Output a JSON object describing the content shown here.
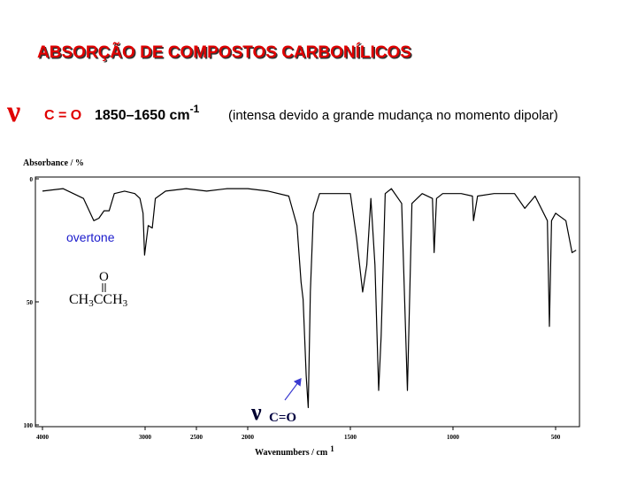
{
  "header": {
    "title": "ABSORÇÃO DE COMPOSTOS CARBONÍLICOS",
    "symbol": "ν",
    "group": "C = O",
    "range": "1850–1650 cm",
    "range_sup": "-1",
    "note": "(intensa devido a grande mudança no momento dipolar)"
  },
  "chart_data": {
    "type": "line",
    "ylabel": "Absorbance / %",
    "xlabel": "Wavenumbers / cm",
    "xlabel_sup": "1",
    "xlim": [
      4000,
      400
    ],
    "xscale_break": 2000,
    "xticks": [
      4000,
      3000,
      2500,
      2000,
      1500,
      1000,
      500
    ],
    "ylim": [
      0,
      100
    ],
    "yticks": [
      0,
      50,
      100
    ],
    "y_inverted": true,
    "series": [
      {
        "name": "CH3CCH3",
        "color": "#000000",
        "x": [
          4000,
          3800,
          3600,
          3500,
          3450,
          3400,
          3350,
          3300,
          3200,
          3100,
          3050,
          3020,
          3005,
          2970,
          2930,
          2900,
          2800,
          2600,
          2400,
          2200,
          2000,
          1900,
          1800,
          1760,
          1740,
          1730,
          1715,
          1705,
          1695,
          1680,
          1650,
          1600,
          1500,
          1470,
          1440,
          1420,
          1400,
          1380,
          1362,
          1350,
          1330,
          1300,
          1250,
          1222,
          1200,
          1150,
          1100,
          1092,
          1080,
          1050,
          1000,
          960,
          905,
          900,
          880,
          800,
          700,
          650,
          600,
          540,
          530,
          520,
          500,
          450,
          420,
          400
        ],
        "values": [
          5,
          4,
          8,
          17,
          16,
          13,
          13,
          6,
          5,
          6,
          8,
          14,
          31,
          19,
          20,
          8,
          5,
          4,
          5,
          4,
          4,
          5,
          7,
          19,
          42,
          49,
          80,
          93,
          46,
          14,
          6,
          6,
          6,
          24,
          46,
          35,
          8,
          35,
          86,
          64,
          6,
          4,
          10,
          86,
          10,
          6,
          8,
          30,
          8,
          6,
          6,
          6,
          7,
          17,
          7,
          6,
          6,
          12,
          7,
          17,
          60,
          17,
          14,
          17,
          30,
          29
        ]
      }
    ],
    "annotations": {
      "overtone": "overtone",
      "molecule_top": "O",
      "molecule": [
        "CH",
        "3",
        "CCH",
        "3"
      ],
      "peak_symbol": "ν",
      "peak_group": "C=O"
    }
  }
}
